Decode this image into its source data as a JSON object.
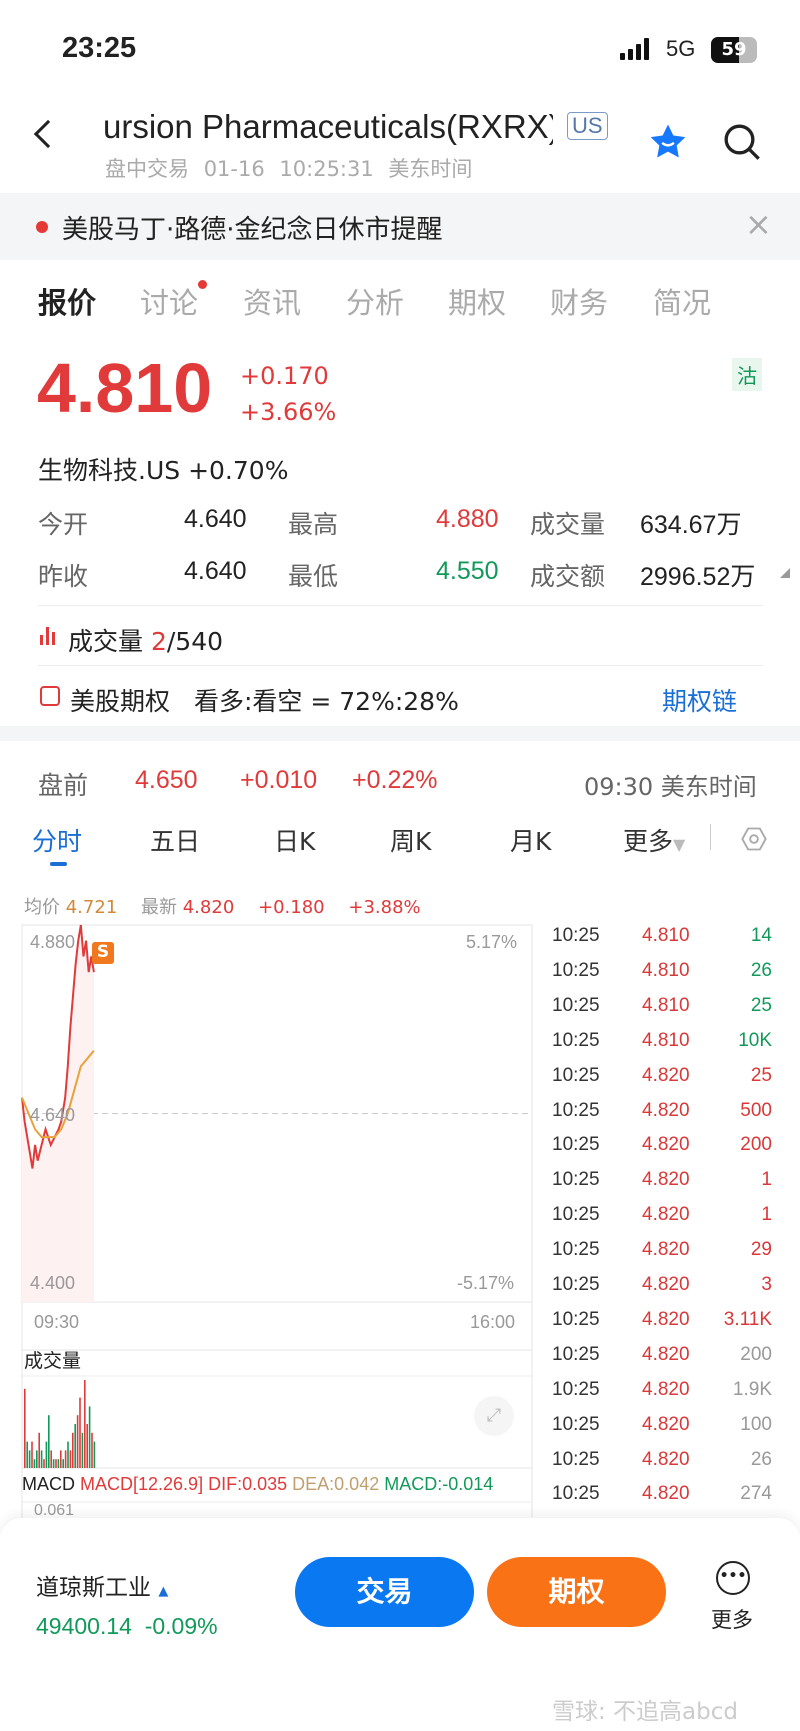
{
  "status": {
    "time": "23:25",
    "network": "5G",
    "battery": "59"
  },
  "header": {
    "title": "ursion Pharmaceuticals(RXRX)",
    "market_badge": "US",
    "session": "盘中交易",
    "date": "01-16",
    "time": "10:25:31",
    "timezone": "美东时间"
  },
  "banner": {
    "text": "美股马丁·路德·金纪念日休市提醒"
  },
  "tabs": [
    {
      "label": "报价",
      "active": true
    },
    {
      "label": "讨论",
      "dot": true
    },
    {
      "label": "资讯"
    },
    {
      "label": "分析"
    },
    {
      "label": "期权"
    },
    {
      "label": "财务"
    },
    {
      "label": "简况"
    }
  ],
  "quote": {
    "price": "4.810",
    "change": "+0.170",
    "change_pct": "+3.66%",
    "tag": "沽",
    "sector": "生物科技.US",
    "sector_change": "+0.70%",
    "open_label": "今开",
    "open": "4.640",
    "high_label": "最高",
    "high": "4.880",
    "volume_label": "成交量",
    "volume": "634.67万",
    "prev_label": "昨收",
    "prev": "4.640",
    "low_label": "最低",
    "low": "4.550",
    "amount_label": "成交额",
    "amount": "2996.52万"
  },
  "volume_rank": {
    "label": "成交量",
    "rank": "2",
    "total": "/540"
  },
  "options": {
    "label": "美股期权",
    "ratio_text": "看多:看空 = 72%:28%",
    "link": "期权链"
  },
  "premarket": {
    "label": "盘前",
    "price": "4.650",
    "change": "+0.010",
    "change_pct": "+0.22%",
    "time": "09:30 美东时间"
  },
  "chart_tabs": [
    {
      "label": "分时",
      "active": true
    },
    {
      "label": "五日"
    },
    {
      "label": "日K"
    },
    {
      "label": "周K"
    },
    {
      "label": "月K"
    },
    {
      "label": "更多"
    }
  ],
  "chart_info": {
    "avg_label": "均价",
    "avg": "4.721",
    "latest_label": "最新",
    "latest": "4.820",
    "change": "+0.180",
    "change_pct": "+3.88%"
  },
  "chart_data": {
    "type": "line",
    "ylim": [
      4.4,
      4.88
    ],
    "y_ticks": [
      "4.880",
      "4.640",
      "4.400"
    ],
    "y_right_ticks": [
      "5.17%",
      "-5.17%"
    ],
    "x_ticks": [
      "09:30",
      "16:00"
    ],
    "prev_close": 4.64,
    "series": [
      {
        "color": "#e03a3a",
        "x": [
          "09:30",
          "09:32",
          "09:34",
          "09:36",
          "09:38",
          "09:40",
          "09:42",
          "09:45",
          "09:48",
          "09:52",
          "09:55",
          "09:58",
          "10:00",
          "10:03",
          "10:05",
          "10:07",
          "10:09",
          "10:11",
          "10:13",
          "10:15",
          "10:17",
          "10:19",
          "10:21",
          "10:23",
          "10:25"
        ],
        "values": [
          4.66,
          4.63,
          4.61,
          4.59,
          4.57,
          4.6,
          4.58,
          4.6,
          4.62,
          4.6,
          4.61,
          4.62,
          4.63,
          4.66,
          4.7,
          4.75,
          4.79,
          4.83,
          4.86,
          4.88,
          4.84,
          4.86,
          4.82,
          4.84,
          4.82
        ]
      },
      {
        "color": "#e8a23a",
        "x": [
          "09:30",
          "09:35",
          "09:40",
          "09:45",
          "09:50",
          "09:55",
          "10:00",
          "10:05",
          "10:10",
          "10:15",
          "10:20",
          "10:25"
        ],
        "values": [
          4.66,
          4.64,
          4.62,
          4.61,
          4.61,
          4.61,
          4.62,
          4.64,
          4.67,
          4.7,
          4.71,
          4.72
        ]
      }
    ]
  },
  "volume_panel": {
    "label": "成交量",
    "bars": [
      9,
      3,
      2,
      3,
      1,
      2,
      4,
      2,
      1,
      3,
      6,
      2,
      1,
      1,
      1,
      2,
      1,
      2,
      3,
      2,
      4,
      5,
      6,
      8,
      4,
      10,
      5,
      7,
      4,
      3
    ],
    "colors": [
      "r",
      "g",
      "g",
      "r",
      "g",
      "g",
      "r",
      "g",
      "r",
      "g",
      "g",
      "r",
      "g",
      "r",
      "g",
      "r",
      "g",
      "r",
      "g",
      "r",
      "r",
      "g",
      "r",
      "r",
      "g",
      "r",
      "r",
      "g",
      "r",
      "g"
    ]
  },
  "macd": {
    "label": "MACD",
    "params": "MACD[12.26.9]",
    "dif": "DIF:0.035",
    "dea": "DEA:0.042",
    "macd": "MACD:-0.014",
    "tick": "0.061"
  },
  "trades": [
    [
      "10:25",
      "4.810",
      "14",
      "g"
    ],
    [
      "10:25",
      "4.810",
      "26",
      "g"
    ],
    [
      "10:25",
      "4.810",
      "25",
      "g"
    ],
    [
      "10:25",
      "4.810",
      "10K",
      "g"
    ],
    [
      "10:25",
      "4.820",
      "25",
      "r"
    ],
    [
      "10:25",
      "4.820",
      "500",
      "r"
    ],
    [
      "10:25",
      "4.820",
      "200",
      "r"
    ],
    [
      "10:25",
      "4.820",
      "1",
      "r"
    ],
    [
      "10:25",
      "4.820",
      "1",
      "r"
    ],
    [
      "10:25",
      "4.820",
      "29",
      "r"
    ],
    [
      "10:25",
      "4.820",
      "3",
      "r"
    ],
    [
      "10:25",
      "4.820",
      "3.11K",
      "r"
    ],
    [
      "10:25",
      "4.820",
      "200",
      "n"
    ],
    [
      "10:25",
      "4.820",
      "1.9K",
      "n"
    ],
    [
      "10:25",
      "4.820",
      "100",
      "n"
    ],
    [
      "10:25",
      "4.820",
      "26",
      "n"
    ],
    [
      "10:25",
      "4.820",
      "274",
      "n"
    ]
  ],
  "bottom": {
    "index_name": "道琼斯工业",
    "index_value": "49400.14",
    "index_change": "-0.09%",
    "trade_label": "交易",
    "options_label": "期权",
    "more_label": "更多",
    "trade_color": "#0a78f0",
    "options_color": "#f97316"
  },
  "watermark": "雪球: 不追高abcd"
}
